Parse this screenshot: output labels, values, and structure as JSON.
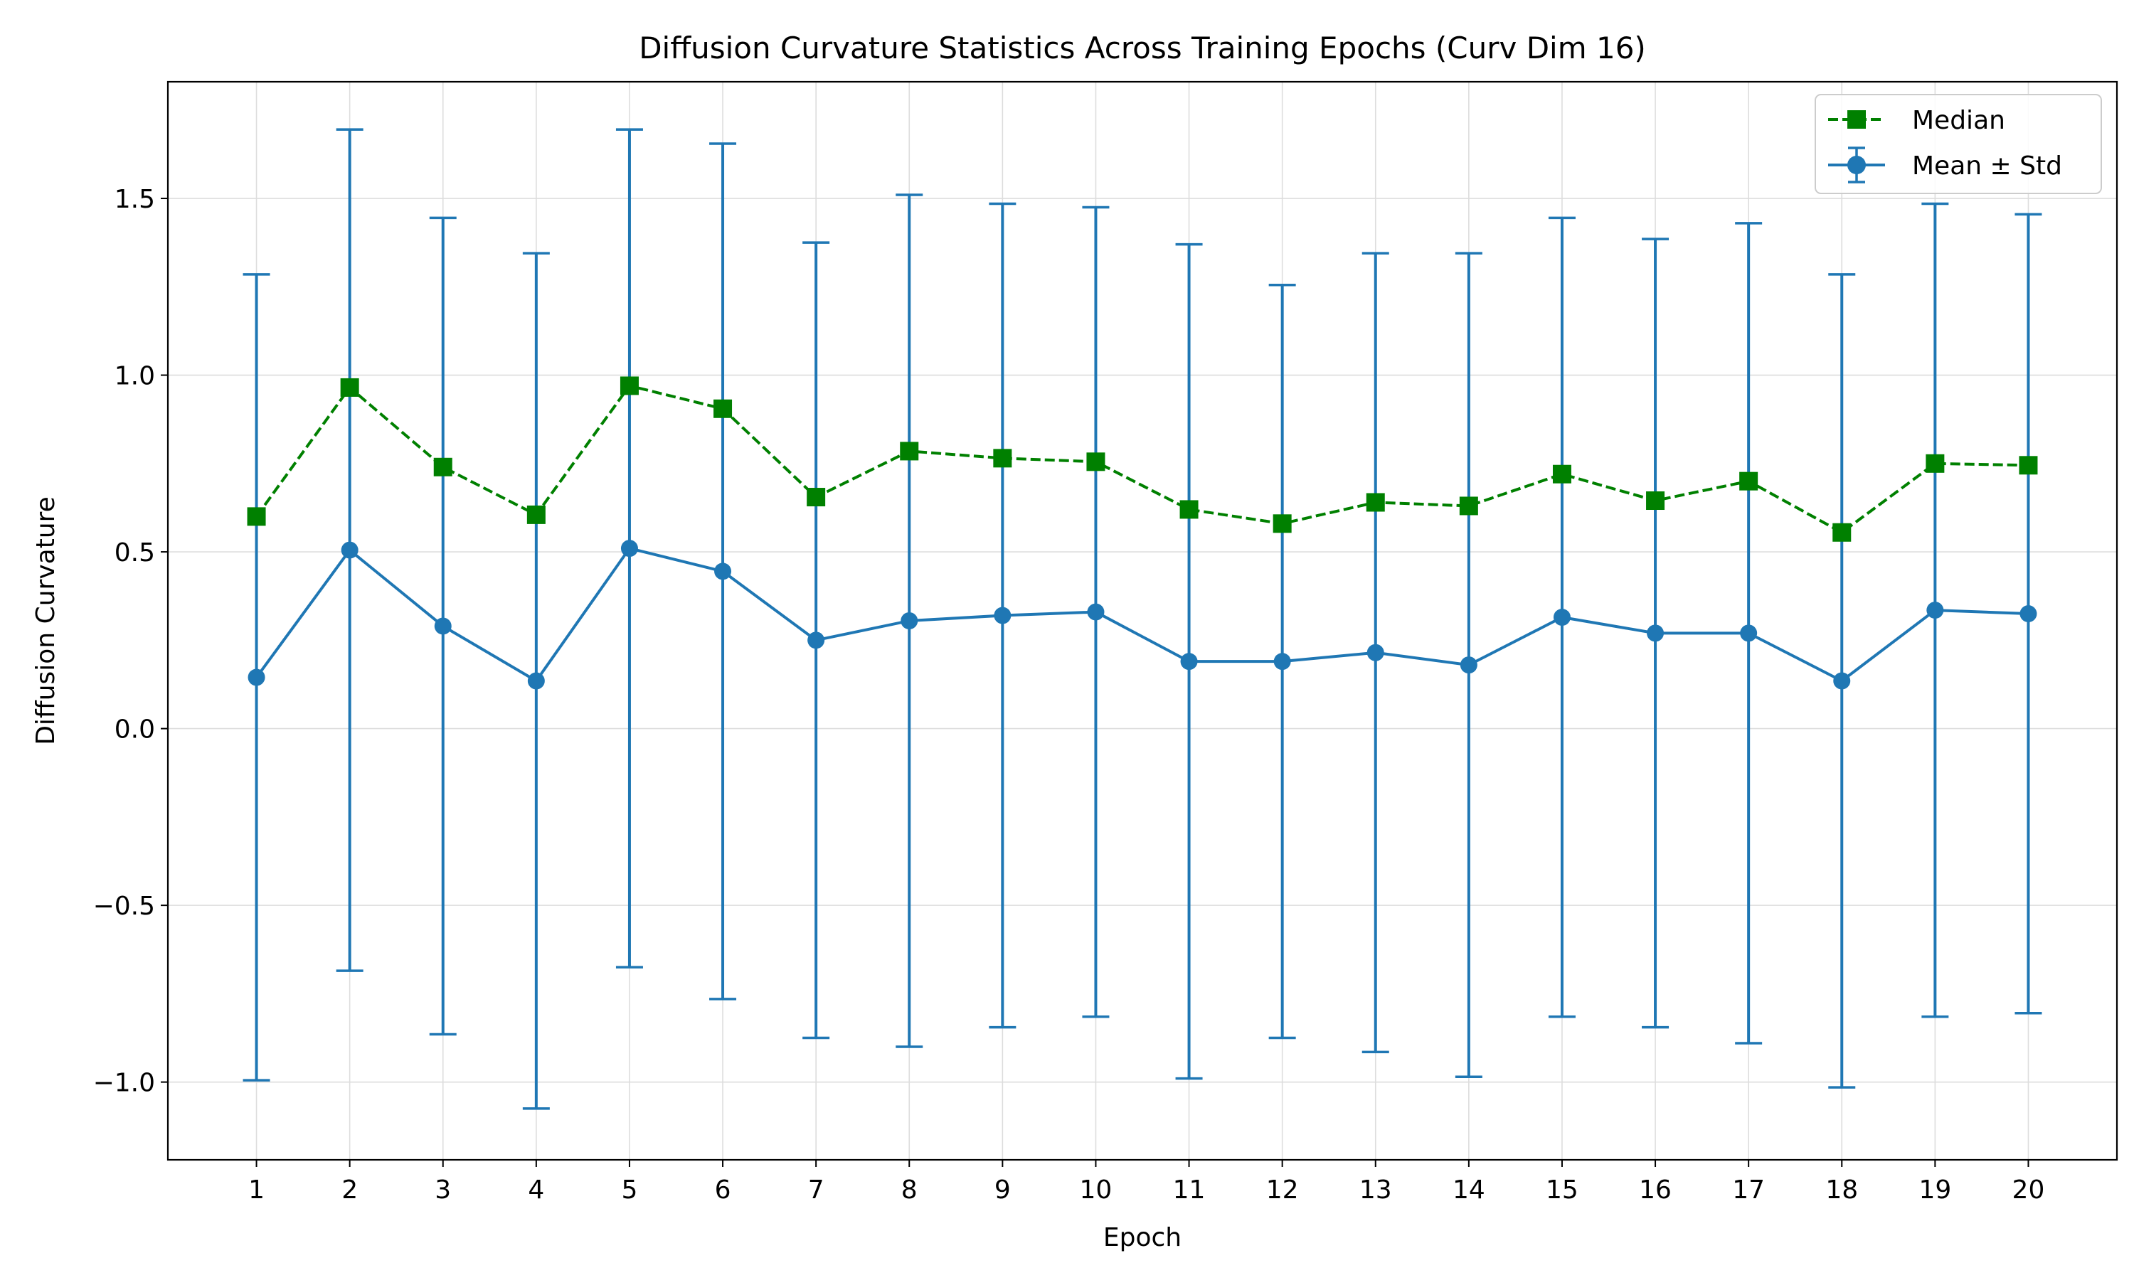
{
  "chart_data": {
    "type": "line",
    "title": "Diffusion Curvature Statistics Across Training Epochs (Curv Dim 16)",
    "xlabel": "Epoch",
    "ylabel": "Diffusion Curvature",
    "x": [
      1,
      2,
      3,
      4,
      5,
      6,
      7,
      8,
      9,
      10,
      11,
      12,
      13,
      14,
      15,
      16,
      17,
      18,
      19,
      20
    ],
    "xlim": [
      0.05,
      20.95
    ],
    "ylim": [
      -1.22,
      1.83
    ],
    "yticks": [
      -1.0,
      -0.5,
      0.0,
      0.5,
      1.0,
      1.5
    ],
    "ytick_labels": [
      "−1.0",
      "−0.5",
      "0.0",
      "0.5",
      "1.0",
      "1.5"
    ],
    "grid": true,
    "legend_position": "top-right",
    "series": [
      {
        "name": "Median",
        "style": "dashed-square",
        "color": "#008000",
        "values": [
          0.6,
          0.965,
          0.74,
          0.605,
          0.97,
          0.905,
          0.655,
          0.785,
          0.765,
          0.755,
          0.62,
          0.58,
          0.64,
          0.63,
          0.72,
          0.645,
          0.7,
          0.555,
          0.75,
          0.745
        ]
      },
      {
        "name": "Mean ± Std",
        "style": "solid-circle-errorbar",
        "color": "#1f77b4",
        "values": [
          0.145,
          0.505,
          0.29,
          0.135,
          0.51,
          0.445,
          0.25,
          0.305,
          0.32,
          0.33,
          0.19,
          0.19,
          0.215,
          0.18,
          0.315,
          0.27,
          0.27,
          0.135,
          0.335,
          0.325
        ],
        "std": [
          1.14,
          1.19,
          1.155,
          1.21,
          1.185,
          1.21,
          1.125,
          1.205,
          1.165,
          1.145,
          1.18,
          1.065,
          1.13,
          1.165,
          1.13,
          1.115,
          1.16,
          1.15,
          1.15,
          1.13
        ]
      }
    ]
  }
}
